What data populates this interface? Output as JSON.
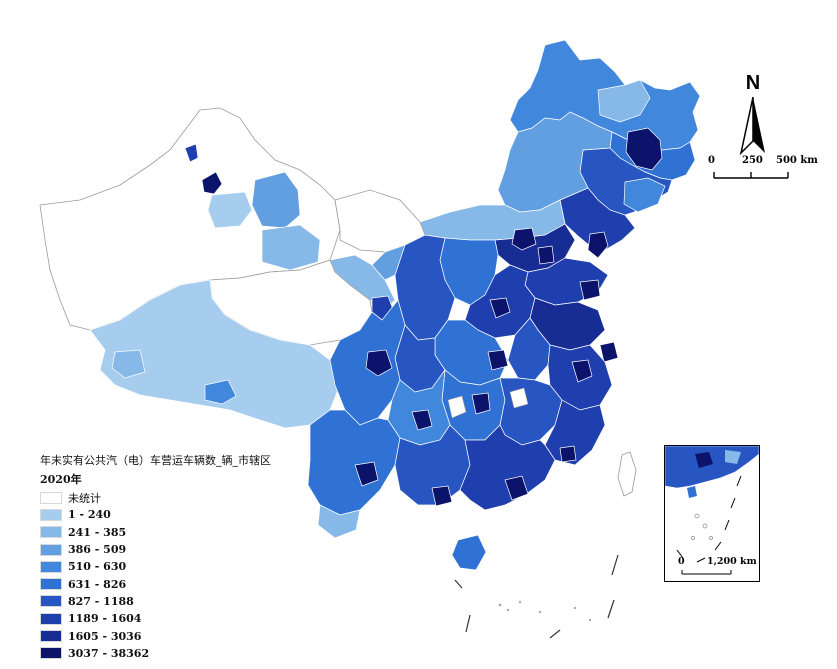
{
  "legend": {
    "title": "年末实有公共汽（电）车营运车辆数_辆_市辖区",
    "year": "2020年",
    "classes": [
      {
        "label": "未统计",
        "color": "#ffffff"
      },
      {
        "label": "1 - 240",
        "color": "#a6cdee"
      },
      {
        "label": "241 - 385",
        "color": "#86b8e8"
      },
      {
        "label": "386 - 509",
        "color": "#619fe1"
      },
      {
        "label": "510 - 630",
        "color": "#4187dc"
      },
      {
        "label": "631 - 826",
        "color": "#2f72d4"
      },
      {
        "label": "827 - 1188",
        "color": "#2756c3"
      },
      {
        "label": "1189 - 1604",
        "color": "#1f3fae"
      },
      {
        "label": "1605 - 3036",
        "color": "#182d94"
      },
      {
        "label": "3037 - 38362",
        "color": "#0b136b"
      }
    ]
  },
  "north_arrow": {
    "letter": "N"
  },
  "scale_bar": {
    "tick_0": "0",
    "tick_1": "250",
    "tick_2": "500 km"
  },
  "inset": {
    "scale_0": "0",
    "scale_1": "1,200 km"
  },
  "colors": {
    "unsurveyed": "#ffffff",
    "border": "#9a9a9a",
    "internal_border": "#ffffff"
  }
}
